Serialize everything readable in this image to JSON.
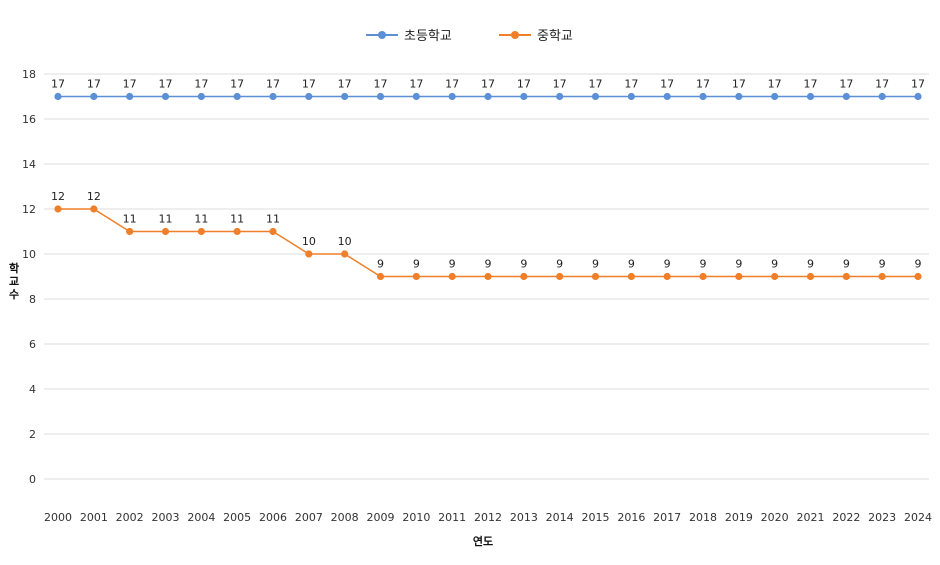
{
  "chart_data": {
    "type": "line",
    "title": "",
    "xlabel": "연도",
    "ylabel": "학교 수",
    "ylim": [
      0,
      18
    ],
    "yticks": [
      0,
      2,
      4,
      6,
      8,
      10,
      12,
      14,
      16,
      18
    ],
    "grid": true,
    "legend_position": "top-center",
    "categories": [
      "2000",
      "2001",
      "2002",
      "2003",
      "2004",
      "2005",
      "2006",
      "2007",
      "2008",
      "2009",
      "2010",
      "2011",
      "2012",
      "2013",
      "2014",
      "2015",
      "2016",
      "2017",
      "2018",
      "2019",
      "2020",
      "2021",
      "2022",
      "2023",
      "2024"
    ],
    "series": [
      {
        "name": "초등학교",
        "color": "#5b8fd6",
        "values": [
          17,
          17,
          17,
          17,
          17,
          17,
          17,
          17,
          17,
          17,
          17,
          17,
          17,
          17,
          17,
          17,
          17,
          17,
          17,
          17,
          17,
          17,
          17,
          17,
          17
        ]
      },
      {
        "name": "중학교",
        "color": "#f07f2a",
        "values": [
          12,
          12,
          11,
          11,
          11,
          11,
          11,
          10,
          10,
          9,
          9,
          9,
          9,
          9,
          9,
          9,
          9,
          9,
          9,
          9,
          9,
          9,
          9,
          9,
          9
        ]
      }
    ]
  }
}
